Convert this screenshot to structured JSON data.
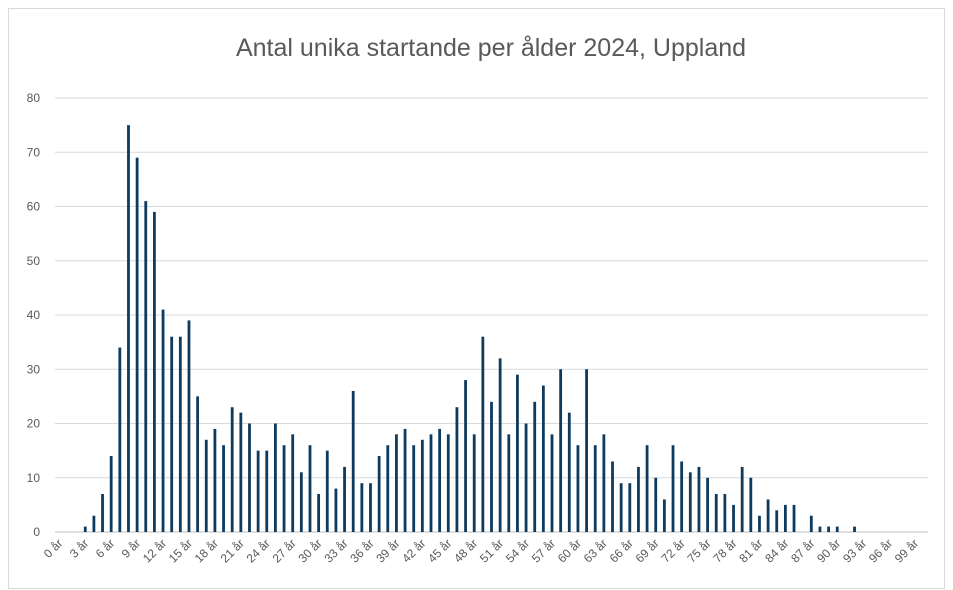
{
  "chart_data": {
    "type": "bar",
    "title": "Antal unika startande per ålder 2024, Uppland",
    "categories": [
      "0 år",
      null,
      null,
      "3 år",
      null,
      null,
      "6 år",
      null,
      null,
      "9 år",
      null,
      null,
      "12 år",
      null,
      null,
      "15 år",
      null,
      null,
      "18 år",
      null,
      null,
      "21 år",
      null,
      null,
      "24 år",
      null,
      null,
      "27 år",
      null,
      null,
      "30 år",
      null,
      null,
      "33 år",
      null,
      null,
      "36 år",
      null,
      null,
      "39 år",
      null,
      null,
      "42 år",
      null,
      null,
      "45 år",
      null,
      null,
      "48 år",
      null,
      null,
      "51 år",
      null,
      null,
      "54 år",
      null,
      null,
      "57 år",
      null,
      null,
      "60 år",
      null,
      null,
      "63 år",
      null,
      null,
      "66 år",
      null,
      null,
      "69 år",
      null,
      null,
      "72 år",
      null,
      null,
      "75 år",
      null,
      null,
      "78 år",
      null,
      null,
      "81 år",
      null,
      null,
      "84 år",
      null,
      null,
      "87 år",
      null,
      null,
      "90 år",
      null,
      null,
      "93 år",
      null,
      null,
      "96 år",
      null,
      null,
      "99 år",
      null
    ],
    "values": [
      0,
      0,
      0,
      1,
      3,
      7,
      14,
      34,
      75,
      69,
      61,
      59,
      41,
      36,
      36,
      39,
      25,
      17,
      19,
      16,
      23,
      22,
      20,
      15,
      15,
      20,
      16,
      18,
      11,
      16,
      7,
      15,
      8,
      12,
      26,
      9,
      9,
      14,
      16,
      18,
      19,
      16,
      17,
      18,
      19,
      18,
      23,
      28,
      18,
      36,
      24,
      32,
      18,
      29,
      20,
      24,
      27,
      18,
      30,
      22,
      16,
      30,
      16,
      18,
      13,
      9,
      9,
      12,
      16,
      10,
      6,
      16,
      13,
      11,
      12,
      10,
      7,
      7,
      5,
      12,
      10,
      3,
      6,
      4,
      5,
      5,
      0,
      3,
      1,
      1,
      1,
      0,
      1,
      0,
      0,
      0,
      0,
      0,
      0,
      0,
      0
    ],
    "color": "#0e3a5e",
    "ylim": [
      0,
      80
    ],
    "yticks": [
      0,
      10,
      20,
      30,
      40,
      50,
      60,
      70,
      80
    ],
    "grid": true
  }
}
